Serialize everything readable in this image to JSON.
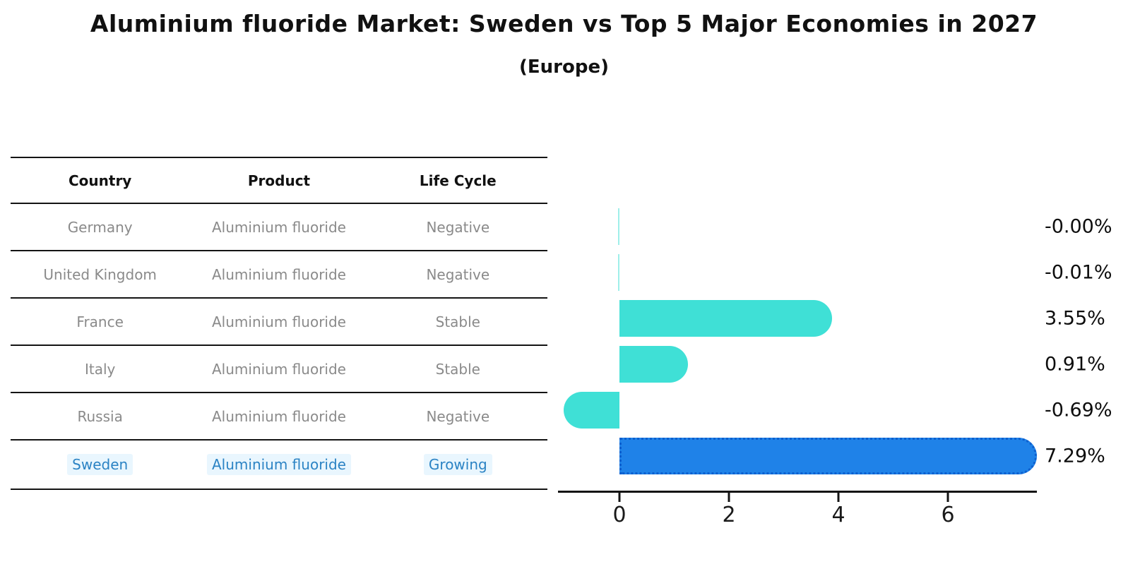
{
  "chart_data": {
    "type": "bar",
    "orientation": "horizontal",
    "title": "Aluminium fluoride Market: Sweden vs Top 5 Major Economies in 2027",
    "subtitle": "(Europe)",
    "categories": [
      "Germany",
      "United Kingdom",
      "France",
      "Italy",
      "Russia",
      "Sweden"
    ],
    "values": [
      -0.0,
      -0.01,
      3.55,
      0.91,
      -0.69,
      7.29
    ],
    "value_labels": [
      "-0.00%",
      "-0.01%",
      "3.55%",
      "0.91%",
      "-0.69%",
      "7.29%"
    ],
    "highlight_index": 5,
    "xticks": [
      "0",
      "2",
      "4",
      "6"
    ],
    "xtick_values": [
      0,
      2,
      4,
      6
    ],
    "xlim": [
      -1.12,
      7.63
    ],
    "grid": false,
    "legend": false,
    "xlabel": "",
    "ylabel": ""
  },
  "table": {
    "headers": [
      "Country",
      "Product",
      "Life Cycle"
    ],
    "rows": [
      [
        "Germany",
        "Aluminium fluoride",
        "Negative"
      ],
      [
        "United Kingdom",
        "Aluminium fluoride",
        "Negative"
      ],
      [
        "France",
        "Aluminium fluoride",
        "Stable"
      ],
      [
        "Italy",
        "Aluminium fluoride",
        "Stable"
      ],
      [
        "Russia",
        "Aluminium fluoride",
        "Negative"
      ],
      [
        "Sweden",
        "Aluminium fluoride",
        "Growing"
      ]
    ],
    "highlight_row": 5
  },
  "colors": {
    "turquoise": "#3fe0d6",
    "bar_blue": "#1f82e8",
    "bar_blue_border": "#0d5fce",
    "text_gray": "#8a8a8a",
    "link_blue": "#2b83c4",
    "highlight_bg": "#e9f6fe",
    "line_black": "#141414"
  }
}
